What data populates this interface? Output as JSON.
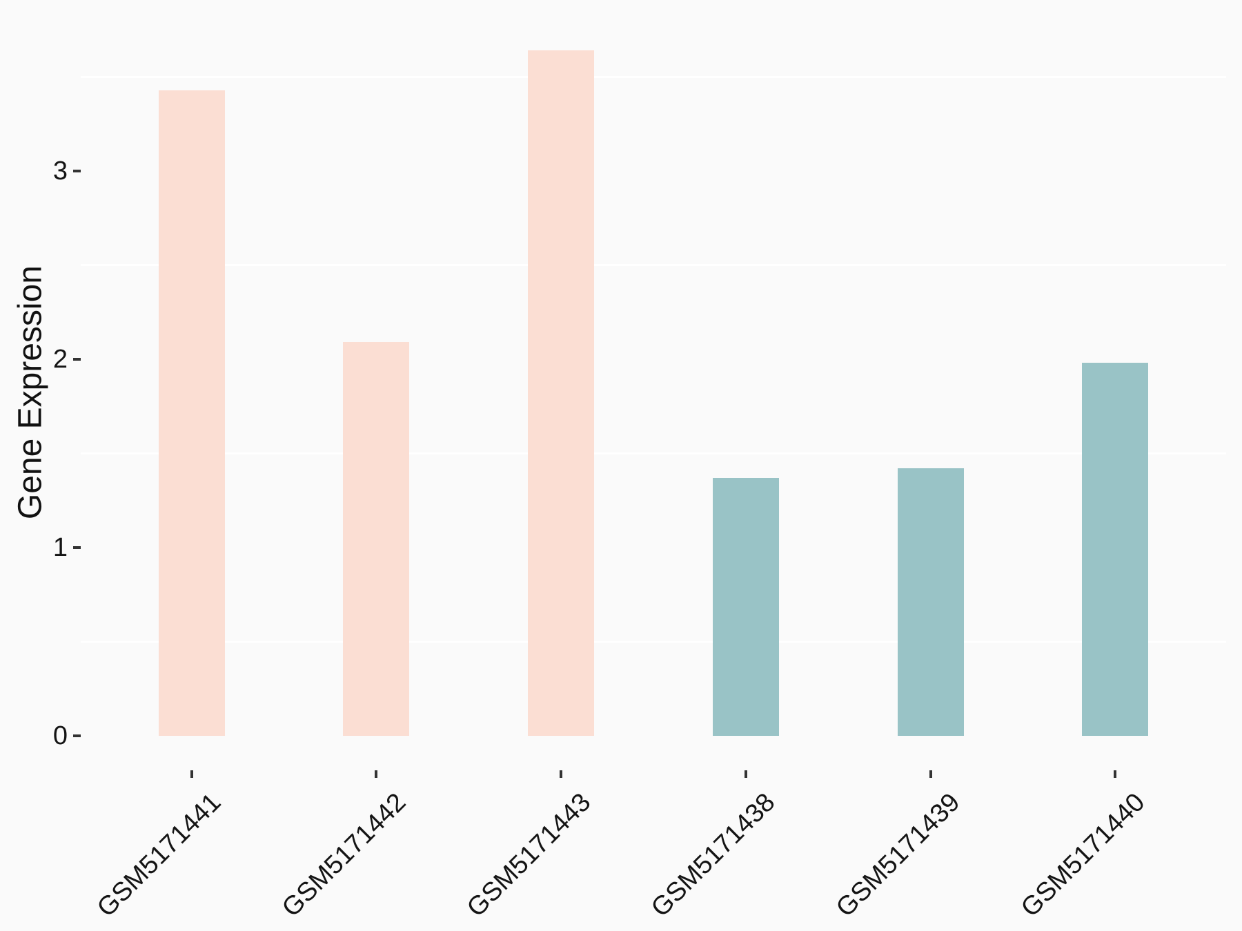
{
  "chart_data": {
    "type": "bar",
    "title": "",
    "xlabel": "",
    "ylabel": "Gene Expression",
    "categories": [
      "GSM5171441",
      "GSM5171442",
      "GSM5171443",
      "GSM5171438",
      "GSM5171439",
      "GSM5171440"
    ],
    "values": [
      3.43,
      2.09,
      3.64,
      1.37,
      1.42,
      1.98
    ],
    "bar_colors": [
      "#fbded3",
      "#fbded3",
      "#fbded3",
      "#99c3c6",
      "#99c3c6",
      "#99c3c6"
    ],
    "groups": [
      {
        "name": "pink-group",
        "color": "#fbded3",
        "members": [
          "GSM5171441",
          "GSM5171442",
          "GSM5171443"
        ]
      },
      {
        "name": "teal-group",
        "color": "#99c3c6",
        "members": [
          "GSM5171438",
          "GSM5171439",
          "GSM5171440"
        ]
      }
    ],
    "y_ticks": [
      {
        "value": 0,
        "label": "0"
      },
      {
        "value": 1,
        "label": "1"
      },
      {
        "value": 2,
        "label": "2"
      },
      {
        "value": 3,
        "label": "3"
      }
    ],
    "y_minor_gridlines": [
      0.5,
      1.5,
      2.5,
      3.5
    ],
    "ylim": [
      -0.18,
      3.83
    ],
    "grid": "minor horizontal only",
    "legend_position": "none",
    "x_label_rotation_deg": 45
  },
  "colors": {
    "background": "#fafafa",
    "panel_background": "#fafafa",
    "gridline": "#ffffff",
    "axis_text": "#141414",
    "tick_mark": "#333333"
  }
}
